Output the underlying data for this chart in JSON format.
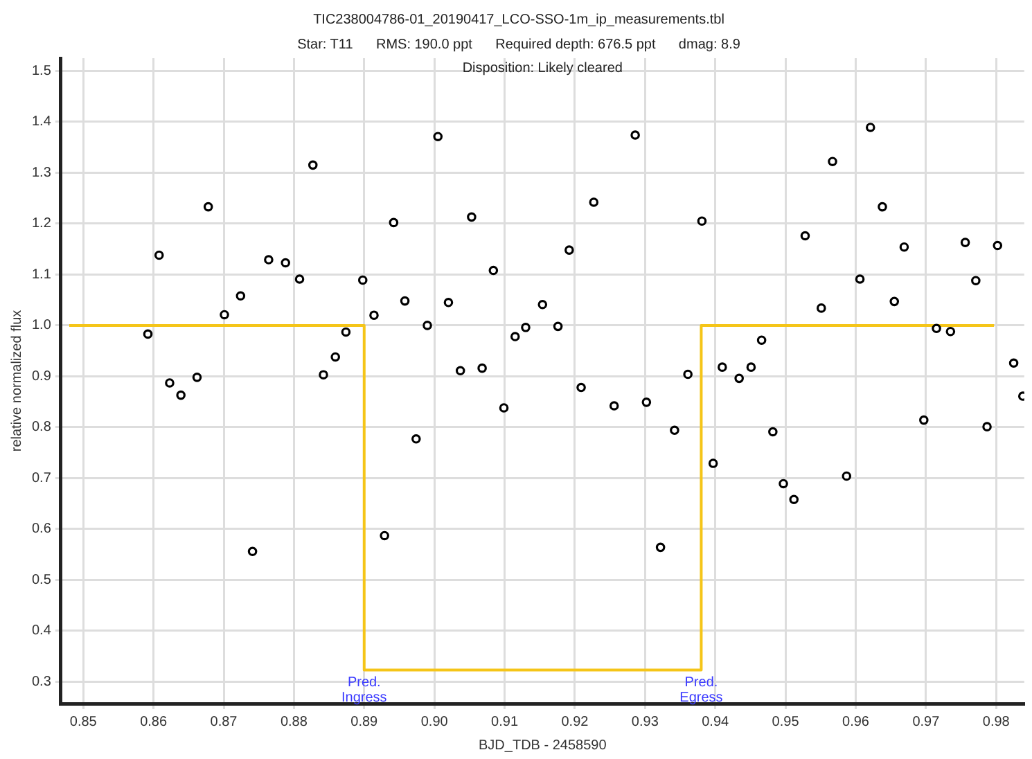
{
  "chart_data": {
    "type": "scatter",
    "title": "TIC238004786-01_20190417_LCO-SSO-1m_ip_measurements.tbl",
    "subtitle": "Star: T11      RMS: 190.0 ppt      Required depth: 676.5 ppt      dmag: 8.9",
    "xlabel": "BJD_TDB - 2458590",
    "ylabel": "relative normalized flux",
    "xlim": [
      0.8468,
      0.984
    ],
    "ylim": [
      0.257,
      1.525
    ],
    "xticks": [
      {
        "value": 0.85,
        "label": "0.85"
      },
      {
        "value": 0.86,
        "label": "0.86"
      },
      {
        "value": 0.87,
        "label": "0.87"
      },
      {
        "value": 0.88,
        "label": "0.88"
      },
      {
        "value": 0.89,
        "label": "0.89"
      },
      {
        "value": 0.9,
        "label": "0.90"
      },
      {
        "value": 0.91,
        "label": "0.91"
      },
      {
        "value": 0.92,
        "label": "0.92"
      },
      {
        "value": 0.93,
        "label": "0.93"
      },
      {
        "value": 0.94,
        "label": "0.94"
      },
      {
        "value": 0.95,
        "label": "0.95"
      },
      {
        "value": 0.96,
        "label": "0.96"
      },
      {
        "value": 0.97,
        "label": "0.97"
      },
      {
        "value": 0.98,
        "label": "0.98"
      }
    ],
    "yticks": [
      0.3,
      0.4,
      0.5,
      0.6,
      0.7,
      0.8,
      0.9,
      {
        "value": 1,
        "label": "1.0"
      },
      1.1,
      1.2,
      1.3,
      1.4,
      1.5
    ],
    "grid": true,
    "legend": false,
    "marker": "circle",
    "series": [
      {
        "color": "#000000",
        "x": [
          0.8592,
          0.8608,
          0.8623,
          0.8639,
          0.8662,
          0.8678,
          0.8701,
          0.8724,
          0.8741,
          0.8764,
          0.8788,
          0.8808,
          0.8827,
          0.8842,
          0.8859,
          0.8874,
          0.8898,
          0.8914,
          0.8929,
          0.8942,
          0.8958,
          0.8974,
          0.899,
          0.9005,
          0.902,
          0.9037,
          0.9053,
          0.9068,
          0.9084,
          0.9099,
          0.9115,
          0.913,
          0.9154,
          0.9176,
          0.9192,
          0.9209,
          0.9227,
          0.9256,
          0.9286,
          0.9302,
          0.9322,
          0.9342,
          0.9361,
          0.9381,
          0.9397,
          0.941,
          0.9434,
          0.9451,
          0.9466,
          0.9482,
          0.9497,
          0.9512,
          0.9528,
          0.9551,
          0.9567,
          0.9587,
          0.9606,
          0.9621,
          0.9638,
          0.9655,
          0.9669,
          0.9697,
          0.9715,
          0.9735,
          0.9756,
          0.9771,
          0.9787,
          0.9802,
          0.9825,
          0.9838
        ],
        "values": [
          0.983,
          1.138,
          0.887,
          0.863,
          0.898,
          1.233,
          1.021,
          1.058,
          0.556,
          1.129,
          1.123,
          1.091,
          1.315,
          0.903,
          0.938,
          0.987,
          1.089,
          1.02,
          0.587,
          1.202,
          1.048,
          0.777,
          1.0,
          1.371,
          1.045,
          0.911,
          1.213,
          0.916,
          1.108,
          0.838,
          0.978,
          0.996,
          1.041,
          0.998,
          1.148,
          0.878,
          1.242,
          0.842,
          1.374,
          0.849,
          0.564,
          0.794,
          0.904,
          1.205,
          0.729,
          0.918,
          0.896,
          0.918,
          0.971,
          0.791,
          0.689,
          0.658,
          1.176,
          1.034,
          1.322,
          0.704,
          1.091,
          1.389,
          1.233,
          1.047,
          1.154,
          0.814,
          0.994,
          0.988,
          1.163,
          1.088,
          0.801,
          1.157,
          0.926,
          0.861
        ]
      },
      {
        "type": "line",
        "color": "#f5c518",
        "marker": "none",
        "x": [
          0.848,
          0.89,
          0.89,
          0.938,
          0.938,
          0.9797
        ],
        "values": [
          1,
          1,
          0.323,
          0.323,
          1,
          1
        ]
      }
    ],
    "annotations": [
      "Disposition: Likely cleared",
      {
        "text": "Pred. Ingress",
        "x": 0.89,
        "y": 0.323
      },
      {
        "text": "Pred. Egress",
        "x": 0.938,
        "y": 0.323
      }
    ]
  }
}
